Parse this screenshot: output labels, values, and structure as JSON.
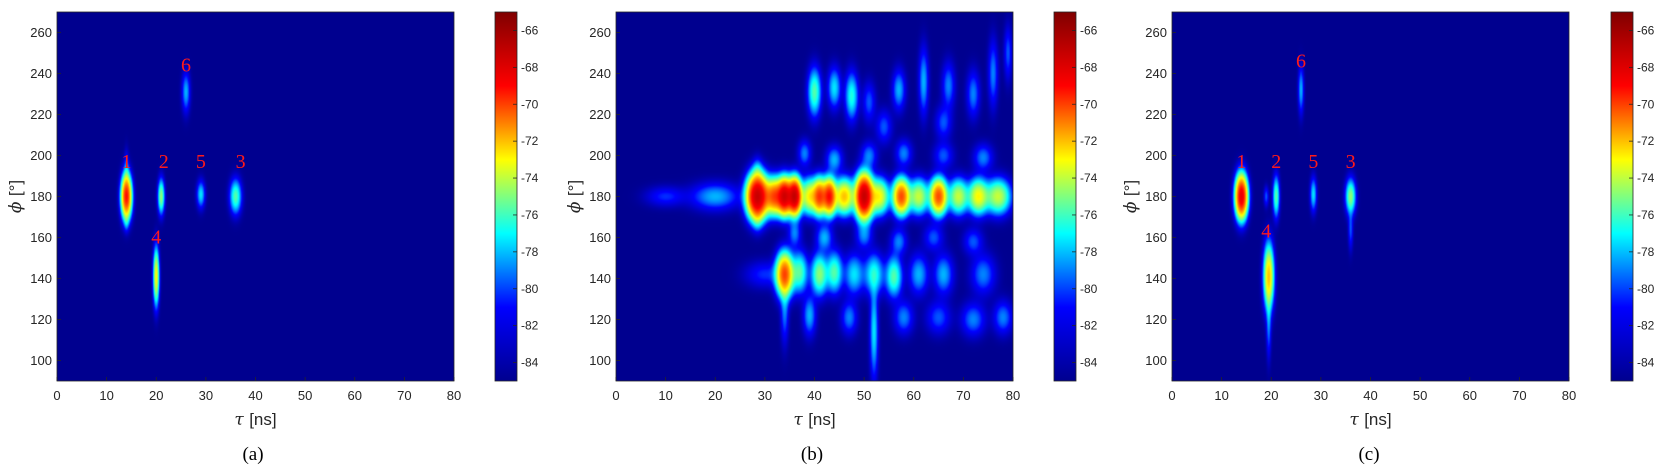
{
  "colormap": {
    "name": "jet",
    "stops": [
      "#00008f",
      "#0000ff",
      "#00ffff",
      "#ffff00",
      "#ff0000",
      "#800000"
    ]
  },
  "chart_data": [
    {
      "type": "heatmap",
      "caption": "(a)",
      "xlabel_symbol": "τ",
      "xlabel_unit": "[ns]",
      "ylabel_symbol": "ϕ",
      "ylabel_unit": "[°]",
      "xlim": [
        0,
        80
      ],
      "ylim": [
        90,
        270
      ],
      "xticks": [
        "0",
        "10",
        "20",
        "30",
        "40",
        "50",
        "60",
        "70",
        "80"
      ],
      "yticks": [
        "100",
        "120",
        "140",
        "160",
        "180",
        "200",
        "220",
        "240",
        "260"
      ],
      "colorbar": {
        "min": -85,
        "max": -65,
        "ticks": [
          "-66",
          "-68",
          "-70",
          "-72",
          "-74",
          "-76",
          "-78",
          "-80",
          "-82",
          "-84"
        ]
      },
      "background_level": -85,
      "blobs": [
        {
          "tau": 14,
          "phi": 180,
          "stau": 0.6,
          "sphi": 6,
          "level": -69
        },
        {
          "tau": 14,
          "phi": 192,
          "stau": 0.3,
          "sphi": 6,
          "level": -81
        },
        {
          "tau": 14,
          "phi": 168,
          "stau": 0.3,
          "sphi": 3,
          "level": -81
        },
        {
          "tau": 21,
          "phi": 180,
          "stau": 0.4,
          "sphi": 5,
          "level": -75
        },
        {
          "tau": 29,
          "phi": 181,
          "stau": 0.5,
          "sphi": 4,
          "level": -78
        },
        {
          "tau": 36,
          "phi": 180,
          "stau": 0.7,
          "sphi": 5,
          "level": -76
        },
        {
          "tau": 20,
          "phi": 141,
          "stau": 0.35,
          "sphi": 8,
          "level": -73
        },
        {
          "tau": 26,
          "phi": 231,
          "stau": 0.5,
          "sphi": 6,
          "level": -79
        }
      ],
      "labels": [
        {
          "text": "1",
          "tau": 14,
          "phi": 194
        },
        {
          "text": "2",
          "tau": 21.5,
          "phi": 194
        },
        {
          "text": "5",
          "tau": 29,
          "phi": 194
        },
        {
          "text": "3",
          "tau": 37,
          "phi": 194
        },
        {
          "text": "4",
          "tau": 20,
          "phi": 157
        },
        {
          "text": "6",
          "tau": 26,
          "phi": 241
        }
      ]
    },
    {
      "type": "heatmap",
      "caption": "(b)",
      "xlabel_symbol": "τ",
      "xlabel_unit": "[ns]",
      "ylabel_symbol": "ϕ",
      "ylabel_unit": "[°]",
      "xlim": [
        0,
        80
      ],
      "ylim": [
        90,
        270
      ],
      "xticks": [
        "0",
        "10",
        "20",
        "30",
        "40",
        "50",
        "60",
        "70",
        "80"
      ],
      "yticks": [
        "100",
        "120",
        "140",
        "160",
        "180",
        "200",
        "220",
        "240",
        "260"
      ],
      "colorbar": {
        "min": -85,
        "max": -65,
        "ticks": [
          "-66",
          "-68",
          "-70",
          "-72",
          "-74",
          "-76",
          "-78",
          "-80",
          "-82",
          "-84"
        ]
      },
      "background_level": -85,
      "blobs": [
        {
          "tau": 10,
          "phi": 180,
          "stau": 2.5,
          "sphi": 3,
          "level": -82
        },
        {
          "tau": 20,
          "phi": 180,
          "stau": 3,
          "sphi": 4,
          "level": -79
        },
        {
          "tau": 28.5,
          "phi": 180,
          "stau": 1.2,
          "sphi": 6,
          "level": -67
        },
        {
          "tau": 32,
          "phi": 180,
          "stau": 1.2,
          "sphi": 5,
          "level": -70
        },
        {
          "tau": 34,
          "phi": 180,
          "stau": 0.8,
          "sphi": 5,
          "level": -68
        },
        {
          "tau": 36,
          "phi": 180,
          "stau": 0.8,
          "sphi": 5,
          "level": -67
        },
        {
          "tau": 39,
          "phi": 180,
          "stau": 1.0,
          "sphi": 5,
          "level": -73
        },
        {
          "tau": 41,
          "phi": 180,
          "stau": 0.8,
          "sphi": 5,
          "level": -70
        },
        {
          "tau": 43,
          "phi": 180,
          "stau": 0.8,
          "sphi": 5,
          "level": -69
        },
        {
          "tau": 46,
          "phi": 180,
          "stau": 1.2,
          "sphi": 5,
          "level": -72
        },
        {
          "tau": 50,
          "phi": 180,
          "stau": 1.0,
          "sphi": 6,
          "level": -67
        },
        {
          "tau": 53,
          "phi": 180,
          "stau": 1.2,
          "sphi": 5,
          "level": -73
        },
        {
          "tau": 57.5,
          "phi": 180,
          "stau": 1.0,
          "sphi": 5,
          "level": -70
        },
        {
          "tau": 61,
          "phi": 180,
          "stau": 1.2,
          "sphi": 5,
          "level": -74
        },
        {
          "tau": 65,
          "phi": 180,
          "stau": 1.0,
          "sphi": 5,
          "level": -70
        },
        {
          "tau": 69,
          "phi": 180,
          "stau": 1.2,
          "sphi": 5,
          "level": -74
        },
        {
          "tau": 73,
          "phi": 180,
          "stau": 1.2,
          "sphi": 5,
          "level": -73
        },
        {
          "tau": 77,
          "phi": 180,
          "stau": 1.5,
          "sphi": 5,
          "level": -74
        },
        {
          "tau": 28.5,
          "phi": 192,
          "stau": 0.6,
          "sphi": 4,
          "level": -80
        },
        {
          "tau": 28.5,
          "phi": 170,
          "stau": 0.6,
          "sphi": 4,
          "level": -80
        },
        {
          "tau": 30,
          "phi": 142,
          "stau": 2.5,
          "sphi": 4,
          "level": -82
        },
        {
          "tau": 34,
          "phi": 142,
          "stau": 1.0,
          "sphi": 6,
          "level": -70
        },
        {
          "tau": 37,
          "phi": 143,
          "stau": 1.0,
          "sphi": 6,
          "level": -76
        },
        {
          "tau": 41,
          "phi": 142,
          "stau": 1.0,
          "sphi": 6,
          "level": -75
        },
        {
          "tau": 44,
          "phi": 143,
          "stau": 1.0,
          "sphi": 6,
          "level": -76
        },
        {
          "tau": 48,
          "phi": 142,
          "stau": 1.2,
          "sphi": 6,
          "level": -78
        },
        {
          "tau": 52,
          "phi": 142,
          "stau": 1.2,
          "sphi": 6,
          "level": -77
        },
        {
          "tau": 56,
          "phi": 141,
          "stau": 1.0,
          "sphi": 6,
          "level": -76
        },
        {
          "tau": 61,
          "phi": 142,
          "stau": 1.2,
          "sphi": 6,
          "level": -79
        },
        {
          "tau": 66,
          "phi": 142,
          "stau": 1.2,
          "sphi": 6,
          "level": -79
        },
        {
          "tau": 74,
          "phi": 142,
          "stau": 1.5,
          "sphi": 6,
          "level": -80
        },
        {
          "tau": 34,
          "phi": 125,
          "stau": 0.5,
          "sphi": 10,
          "level": -80
        },
        {
          "tau": 39,
          "phi": 122,
          "stau": 0.8,
          "sphi": 6,
          "level": -79
        },
        {
          "tau": 47,
          "phi": 121,
          "stau": 1.0,
          "sphi": 5,
          "level": -80
        },
        {
          "tau": 52,
          "phi": 114,
          "stau": 0.5,
          "sphi": 14,
          "level": -78
        },
        {
          "tau": 58,
          "phi": 121,
          "stau": 1.2,
          "sphi": 5,
          "level": -80
        },
        {
          "tau": 65,
          "phi": 121,
          "stau": 1.5,
          "sphi": 5,
          "level": -81
        },
        {
          "tau": 72,
          "phi": 120,
          "stau": 1.5,
          "sphi": 5,
          "level": -80
        },
        {
          "tau": 78,
          "phi": 121,
          "stau": 1.2,
          "sphi": 5,
          "level": -80
        },
        {
          "tau": 36,
          "phi": 162,
          "stau": 0.8,
          "sphi": 4,
          "level": -80
        },
        {
          "tau": 42,
          "phi": 160,
          "stau": 1.0,
          "sphi": 4,
          "level": -79
        },
        {
          "tau": 50,
          "phi": 161,
          "stau": 1.0,
          "sphi": 4,
          "level": -80
        },
        {
          "tau": 57,
          "phi": 158,
          "stau": 1.0,
          "sphi": 4,
          "level": -80
        },
        {
          "tau": 64,
          "phi": 160,
          "stau": 1.2,
          "sphi": 4,
          "level": -81
        },
        {
          "tau": 72,
          "phi": 158,
          "stau": 1.2,
          "sphi": 4,
          "level": -81
        },
        {
          "tau": 38,
          "phi": 201,
          "stau": 0.8,
          "sphi": 4,
          "level": -80
        },
        {
          "tau": 44,
          "phi": 198,
          "stau": 1.0,
          "sphi": 4,
          "level": -79
        },
        {
          "tau": 51,
          "phi": 200,
          "stau": 1.0,
          "sphi": 4,
          "level": -80
        },
        {
          "tau": 58,
          "phi": 201,
          "stau": 1.0,
          "sphi": 4,
          "level": -80
        },
        {
          "tau": 66,
          "phi": 200,
          "stau": 1.2,
          "sphi": 4,
          "level": -81
        },
        {
          "tau": 74,
          "phi": 199,
          "stau": 1.2,
          "sphi": 4,
          "level": -80
        },
        {
          "tau": 40,
          "phi": 231,
          "stau": 0.8,
          "sphi": 7,
          "level": -76
        },
        {
          "tau": 44,
          "phi": 233,
          "stau": 0.8,
          "sphi": 6,
          "level": -78
        },
        {
          "tau": 47.5,
          "phi": 229,
          "stau": 0.8,
          "sphi": 7,
          "level": -77
        },
        {
          "tau": 51,
          "phi": 226,
          "stau": 0.8,
          "sphi": 6,
          "level": -81
        },
        {
          "tau": 57,
          "phi": 232,
          "stau": 0.8,
          "sphi": 6,
          "level": -79
        },
        {
          "tau": 62,
          "phi": 236,
          "stau": 0.6,
          "sphi": 10,
          "level": -79
        },
        {
          "tau": 67,
          "phi": 234,
          "stau": 0.8,
          "sphi": 7,
          "level": -80
        },
        {
          "tau": 72,
          "phi": 230,
          "stau": 0.8,
          "sphi": 7,
          "level": -80
        },
        {
          "tau": 76,
          "phi": 240,
          "stau": 0.6,
          "sphi": 10,
          "level": -80
        },
        {
          "tau": 79,
          "phi": 250,
          "stau": 0.5,
          "sphi": 8,
          "level": -81
        },
        {
          "tau": 66,
          "phi": 216,
          "stau": 1.0,
          "sphi": 5,
          "level": -81
        },
        {
          "tau": 54,
          "phi": 214,
          "stau": 1.0,
          "sphi": 5,
          "level": -81
        }
      ],
      "labels": []
    },
    {
      "type": "heatmap",
      "caption": "(c)",
      "xlabel_symbol": "τ",
      "xlabel_unit": "[ns]",
      "ylabel_symbol": "ϕ",
      "ylabel_unit": "[°]",
      "xlim": [
        0,
        80
      ],
      "ylim": [
        90,
        270
      ],
      "xticks": [
        "0",
        "10",
        "20",
        "30",
        "40",
        "50",
        "60",
        "70",
        "80"
      ],
      "yticks": [
        "100",
        "120",
        "140",
        "160",
        "180",
        "200",
        "220",
        "240",
        "260"
      ],
      "colorbar": {
        "min": -85,
        "max": -65,
        "ticks": [
          "-66",
          "-68",
          "-70",
          "-72",
          "-74",
          "-76",
          "-78",
          "-80",
          "-82",
          "-84"
        ]
      },
      "background_level": -85,
      "blobs": [
        {
          "tau": 14,
          "phi": 180,
          "stau": 0.7,
          "sphi": 6,
          "level": -68
        },
        {
          "tau": 19,
          "phi": 180,
          "stau": 0.3,
          "sphi": 3,
          "level": -81
        },
        {
          "tau": 21,
          "phi": 180,
          "stau": 0.4,
          "sphi": 6,
          "level": -76
        },
        {
          "tau": 28.5,
          "phi": 181,
          "stau": 0.4,
          "sphi": 5,
          "level": -78
        },
        {
          "tau": 36,
          "phi": 180,
          "stau": 0.6,
          "sphi": 5,
          "level": -75
        },
        {
          "tau": 36,
          "phi": 164,
          "stau": 0.3,
          "sphi": 6,
          "level": -81
        },
        {
          "tau": 19.5,
          "phi": 141,
          "stau": 0.6,
          "sphi": 9,
          "level": -72
        },
        {
          "tau": 19.5,
          "phi": 118,
          "stau": 0.3,
          "sphi": 10,
          "level": -80
        },
        {
          "tau": 26,
          "phi": 232,
          "stau": 0.35,
          "sphi": 7,
          "level": -79
        }
      ],
      "labels": [
        {
          "text": "1",
          "tau": 14,
          "phi": 194
        },
        {
          "text": "2",
          "tau": 21,
          "phi": 194
        },
        {
          "text": "5",
          "tau": 28.5,
          "phi": 194
        },
        {
          "text": "3",
          "tau": 36,
          "phi": 194
        },
        {
          "text": "4",
          "tau": 19,
          "phi": 160
        },
        {
          "text": "6",
          "tau": 26,
          "phi": 243
        }
      ]
    }
  ]
}
